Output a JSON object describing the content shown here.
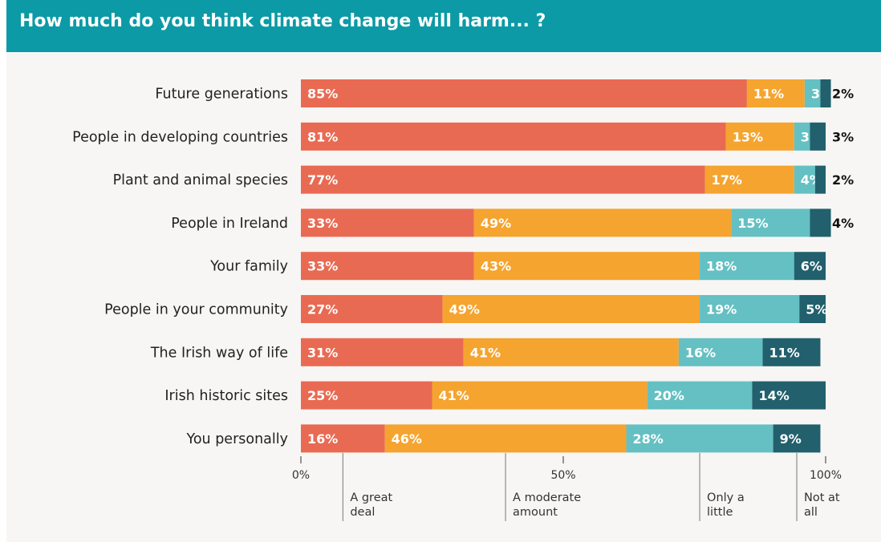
{
  "header": {
    "title": "How much do you think climate change will harm... ?"
  },
  "colors": {
    "header_bg": "#0b9aa6",
    "a_great_deal": "#e96a52",
    "a_moderate_amount": "#f5a42f",
    "only_a_little": "#64c0c2",
    "not_at_all": "#21606c"
  },
  "chart_data": {
    "type": "bar",
    "orientation": "horizontal",
    "stacked": true,
    "categories": [
      "Future generations",
      "People in developing countries",
      "Plant and animal species",
      "People in Ireland",
      "Your family",
      "People in your community",
      "The Irish way of life",
      "Irish historic sites",
      "You personally"
    ],
    "series": [
      {
        "name": "A great deal",
        "values": [
          85,
          81,
          77,
          33,
          33,
          27,
          31,
          25,
          16
        ]
      },
      {
        "name": "A moderate amount",
        "values": [
          11,
          13,
          17,
          49,
          43,
          49,
          41,
          41,
          46
        ]
      },
      {
        "name": "Only a little",
        "values": [
          3,
          3,
          4,
          15,
          18,
          19,
          16,
          20,
          28
        ]
      },
      {
        "name": "Not at all",
        "values": [
          2,
          3,
          2,
          4,
          6,
          5,
          11,
          14,
          9
        ]
      }
    ],
    "x_ticks": [
      "0%",
      "50%",
      "100%"
    ],
    "xlim": [
      0,
      100
    ],
    "legend_position": "bottom",
    "legend_entries": [
      [
        "A great",
        "deal"
      ],
      [
        "A moderate",
        "amount"
      ],
      [
        "Only a",
        "little"
      ],
      [
        "Not at",
        "all"
      ]
    ]
  }
}
